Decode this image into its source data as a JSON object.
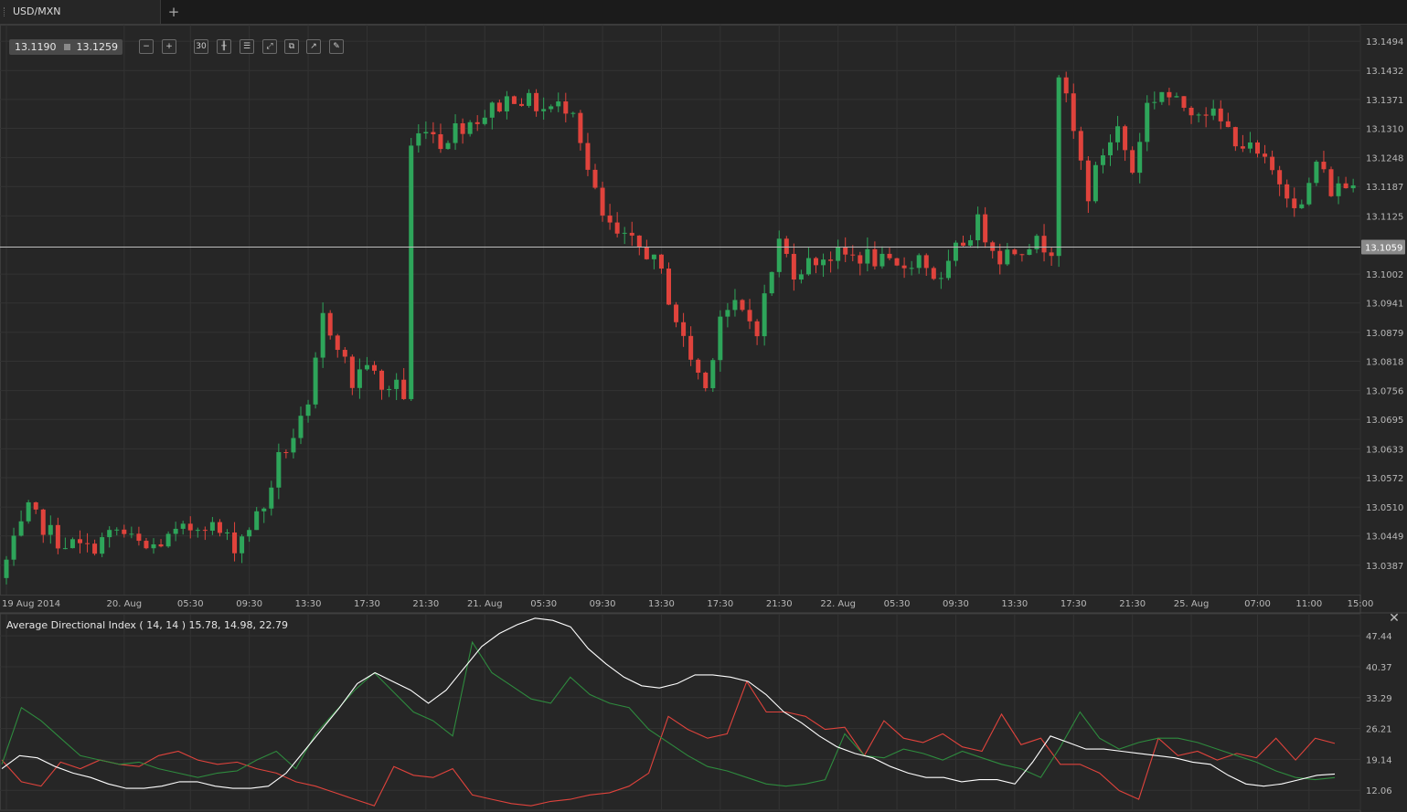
{
  "tabs": {
    "symbol_tab": "USD/MXN",
    "add_tab_glyph": "+"
  },
  "quote": {
    "bid": "13.1190",
    "ask": "13.1259"
  },
  "toolbar": [
    {
      "name": "zoom-out-button",
      "glyph": "−",
      "icon": "zoom-out-icon"
    },
    {
      "name": "zoom-in-button",
      "glyph": "+",
      "icon": "zoom-in-icon"
    },
    {
      "name": "timeframe-button",
      "glyph": "30",
      "icon": "timeframe-icon"
    },
    {
      "name": "chart-type-button",
      "glyph": "╫",
      "icon": "candlestick-icon"
    },
    {
      "name": "indicators-button",
      "glyph": "☰",
      "icon": "indicators-icon"
    },
    {
      "name": "fit-chart-button",
      "glyph": "⤢",
      "icon": "fit-icon"
    },
    {
      "name": "compare-button",
      "glyph": "⧉",
      "icon": "compare-icon"
    },
    {
      "name": "draw-line-button",
      "glyph": "↗",
      "icon": "draw-line-icon"
    },
    {
      "name": "pencil-button",
      "glyph": "✎",
      "icon": "pencil-icon"
    }
  ],
  "indicator": {
    "label": "Average Directional Index ( 14, 14 ) 15.78, 14.98, 22.79",
    "close_glyph": "✕"
  },
  "colors": {
    "bull": "#2ea55a",
    "bear": "#e0433c",
    "adx": "#ffffff",
    "plus_di": "#2e8b3e",
    "minus_di": "#e0433c"
  },
  "chart_data": [
    {
      "type": "candlestick",
      "symbol": "USD/MXN",
      "timeframe_minutes": 30,
      "ylim": [
        13.0325,
        13.1525
      ],
      "y_ticks": [
        "13.1494",
        "13.1432",
        "13.1371",
        "13.1310",
        "13.1248",
        "13.1187",
        "13.1125",
        "13.1002",
        "13.0941",
        "13.0879",
        "13.0818",
        "13.0756",
        "13.0695",
        "13.0633",
        "13.0572",
        "13.0510",
        "13.0449",
        "13.0387"
      ],
      "current_price": "13.1059",
      "current_price_value": 13.1059,
      "x_ticks": [
        "19 Aug 2014",
        "20. Aug",
        "05:30",
        "09:30",
        "13:30",
        "17:30",
        "21:30",
        "21. Aug",
        "05:30",
        "09:30",
        "13:30",
        "17:30",
        "21:30",
        "22. Aug",
        "05:30",
        "09:30",
        "13:30",
        "17:30",
        "21:30",
        "25. Aug",
        "07:00",
        "11:00",
        "15:00"
      ],
      "x_tick_index": [
        0,
        16,
        25,
        33,
        41,
        49,
        57,
        65,
        73,
        81,
        89,
        97,
        105,
        113,
        121,
        129,
        137,
        145,
        153,
        161,
        170,
        177,
        185
      ],
      "grid": true,
      "series_anchors": [
        [
          0,
          13.036
        ],
        [
          4,
          13.05
        ],
        [
          8,
          13.044
        ],
        [
          12,
          13.042
        ],
        [
          16,
          13.046
        ],
        [
          20,
          13.042
        ],
        [
          24,
          13.045
        ],
        [
          28,
          13.048
        ],
        [
          32,
          13.043
        ],
        [
          36,
          13.051
        ],
        [
          38,
          13.061
        ],
        [
          42,
          13.071
        ],
        [
          44,
          13.091
        ],
        [
          46,
          13.086
        ],
        [
          48,
          13.077
        ],
        [
          50,
          13.082
        ],
        [
          52,
          13.075
        ],
        [
          54,
          13.078
        ],
        [
          55,
          13.074
        ],
        [
          56,
          13.127
        ],
        [
          58,
          13.132
        ],
        [
          60,
          13.128
        ],
        [
          62,
          13.131
        ],
        [
          66,
          13.134
        ],
        [
          70,
          13.138
        ],
        [
          74,
          13.135
        ],
        [
          78,
          13.136
        ],
        [
          80,
          13.122
        ],
        [
          82,
          13.112
        ],
        [
          84,
          13.108
        ],
        [
          88,
          13.105
        ],
        [
          90,
          13.1
        ],
        [
          93,
          13.086
        ],
        [
          96,
          13.076
        ],
        [
          98,
          13.092
        ],
        [
          100,
          13.093
        ],
        [
          103,
          13.089
        ],
        [
          106,
          13.107
        ],
        [
          108,
          13.101
        ],
        [
          112,
          13.104
        ],
        [
          118,
          13.104
        ],
        [
          122,
          13.101
        ],
        [
          125,
          13.104
        ],
        [
          128,
          13.098
        ],
        [
          130,
          13.105
        ],
        [
          133,
          13.111
        ],
        [
          136,
          13.104
        ],
        [
          140,
          13.107
        ],
        [
          143,
          13.106
        ],
        [
          144,
          13.143
        ],
        [
          146,
          13.13
        ],
        [
          148,
          13.117
        ],
        [
          150,
          13.126
        ],
        [
          152,
          13.131
        ],
        [
          154,
          13.122
        ],
        [
          156,
          13.136
        ],
        [
          158,
          13.139
        ],
        [
          160,
          13.136
        ],
        [
          164,
          13.135
        ],
        [
          168,
          13.129
        ],
        [
          171,
          13.125
        ],
        [
          174,
          13.12
        ],
        [
          177,
          13.114
        ],
        [
          179,
          13.124
        ],
        [
          181,
          13.118
        ],
        [
          183,
          13.119
        ]
      ],
      "candle_count": 184
    },
    {
      "type": "line",
      "title": "Average Directional Index ( 14, 14 ) 15.78, 14.98, 22.79",
      "ylim": [
        7.5,
        52.5
      ],
      "y_ticks": [
        "47.44",
        "40.37",
        "33.29",
        "26.21",
        "19.14",
        "12.06"
      ],
      "y_tick_values": [
        47.44,
        40.37,
        33.29,
        26.21,
        19.14,
        12.06
      ],
      "series": [
        {
          "name": "ADX",
          "values": [
            17.0,
            20.0,
            19.5,
            17.5,
            16.0,
            15.0,
            13.5,
            12.5,
            12.5,
            13.0,
            14.0,
            14.0,
            13.0,
            12.5,
            12.5,
            13.0,
            16.0,
            21.0,
            26.0,
            31.0,
            36.5,
            39.0,
            37.0,
            35.0,
            32.0,
            35.0,
            40.0,
            45.0,
            48.0,
            50.0,
            51.5,
            51.0,
            49.5,
            44.5,
            41.0,
            38.0,
            36.0,
            35.5,
            36.5,
            38.5,
            38.5,
            38.0,
            37.0,
            34.0,
            30.0,
            27.5,
            24.5,
            22.0,
            20.5,
            19.5,
            17.5,
            16.0,
            15.0,
            15.0,
            14.0,
            14.5,
            14.5,
            13.5,
            18.5,
            24.5,
            23.0,
            21.5,
            21.5,
            21.0,
            20.5,
            20.0,
            19.5,
            18.5,
            18.0,
            15.5,
            13.5,
            13.0,
            13.5,
            14.5,
            15.5,
            15.78
          ]
        },
        {
          "name": "+DI",
          "values": [
            18.0,
            31.0,
            28.0,
            24.0,
            20.0,
            19.0,
            18.0,
            18.5,
            17.0,
            16.0,
            15.0,
            16.0,
            16.5,
            19.0,
            21.0,
            17.0,
            25.0,
            30.0,
            35.0,
            39.0,
            34.5,
            30.0,
            28.0,
            24.5,
            46.0,
            39.0,
            36.0,
            33.0,
            32.0,
            38.0,
            34.0,
            32.0,
            31.0,
            26.0,
            23.0,
            20.0,
            17.5,
            16.5,
            15.0,
            13.5,
            13.0,
            13.5,
            14.5,
            25.0,
            20.0,
            19.5,
            21.5,
            20.5,
            19.0,
            21.0,
            19.5,
            18.0,
            17.0,
            15.0,
            22.0,
            30.0,
            24.0,
            21.5,
            23.0,
            24.0,
            24.0,
            23.0,
            21.5,
            20.0,
            18.5,
            16.5,
            15.0,
            14.5,
            14.98
          ]
        },
        {
          "name": "-DI",
          "values": [
            19.0,
            14.0,
            13.0,
            18.5,
            17.0,
            19.0,
            18.0,
            17.5,
            20.0,
            21.0,
            19.0,
            18.0,
            18.5,
            17.0,
            16.0,
            14.0,
            13.0,
            11.5,
            10.0,
            8.5,
            17.5,
            15.5,
            15.0,
            17.0,
            11.0,
            10.0,
            9.0,
            8.5,
            9.5,
            10.0,
            11.0,
            11.5,
            13.0,
            16.0,
            29.0,
            26.0,
            24.0,
            25.0,
            37.0,
            30.0,
            30.0,
            29.0,
            26.0,
            26.5,
            20.0,
            28.0,
            24.0,
            23.0,
            25.0,
            22.0,
            21.0,
            29.5,
            22.5,
            24.0,
            18.0,
            18.0,
            16.0,
            12.0,
            10.0,
            24.0,
            20.0,
            21.0,
            19.0,
            20.5,
            19.5,
            24.0,
            19.0,
            24.0,
            22.79
          ]
        }
      ],
      "legend_placement": "top-left"
    }
  ]
}
